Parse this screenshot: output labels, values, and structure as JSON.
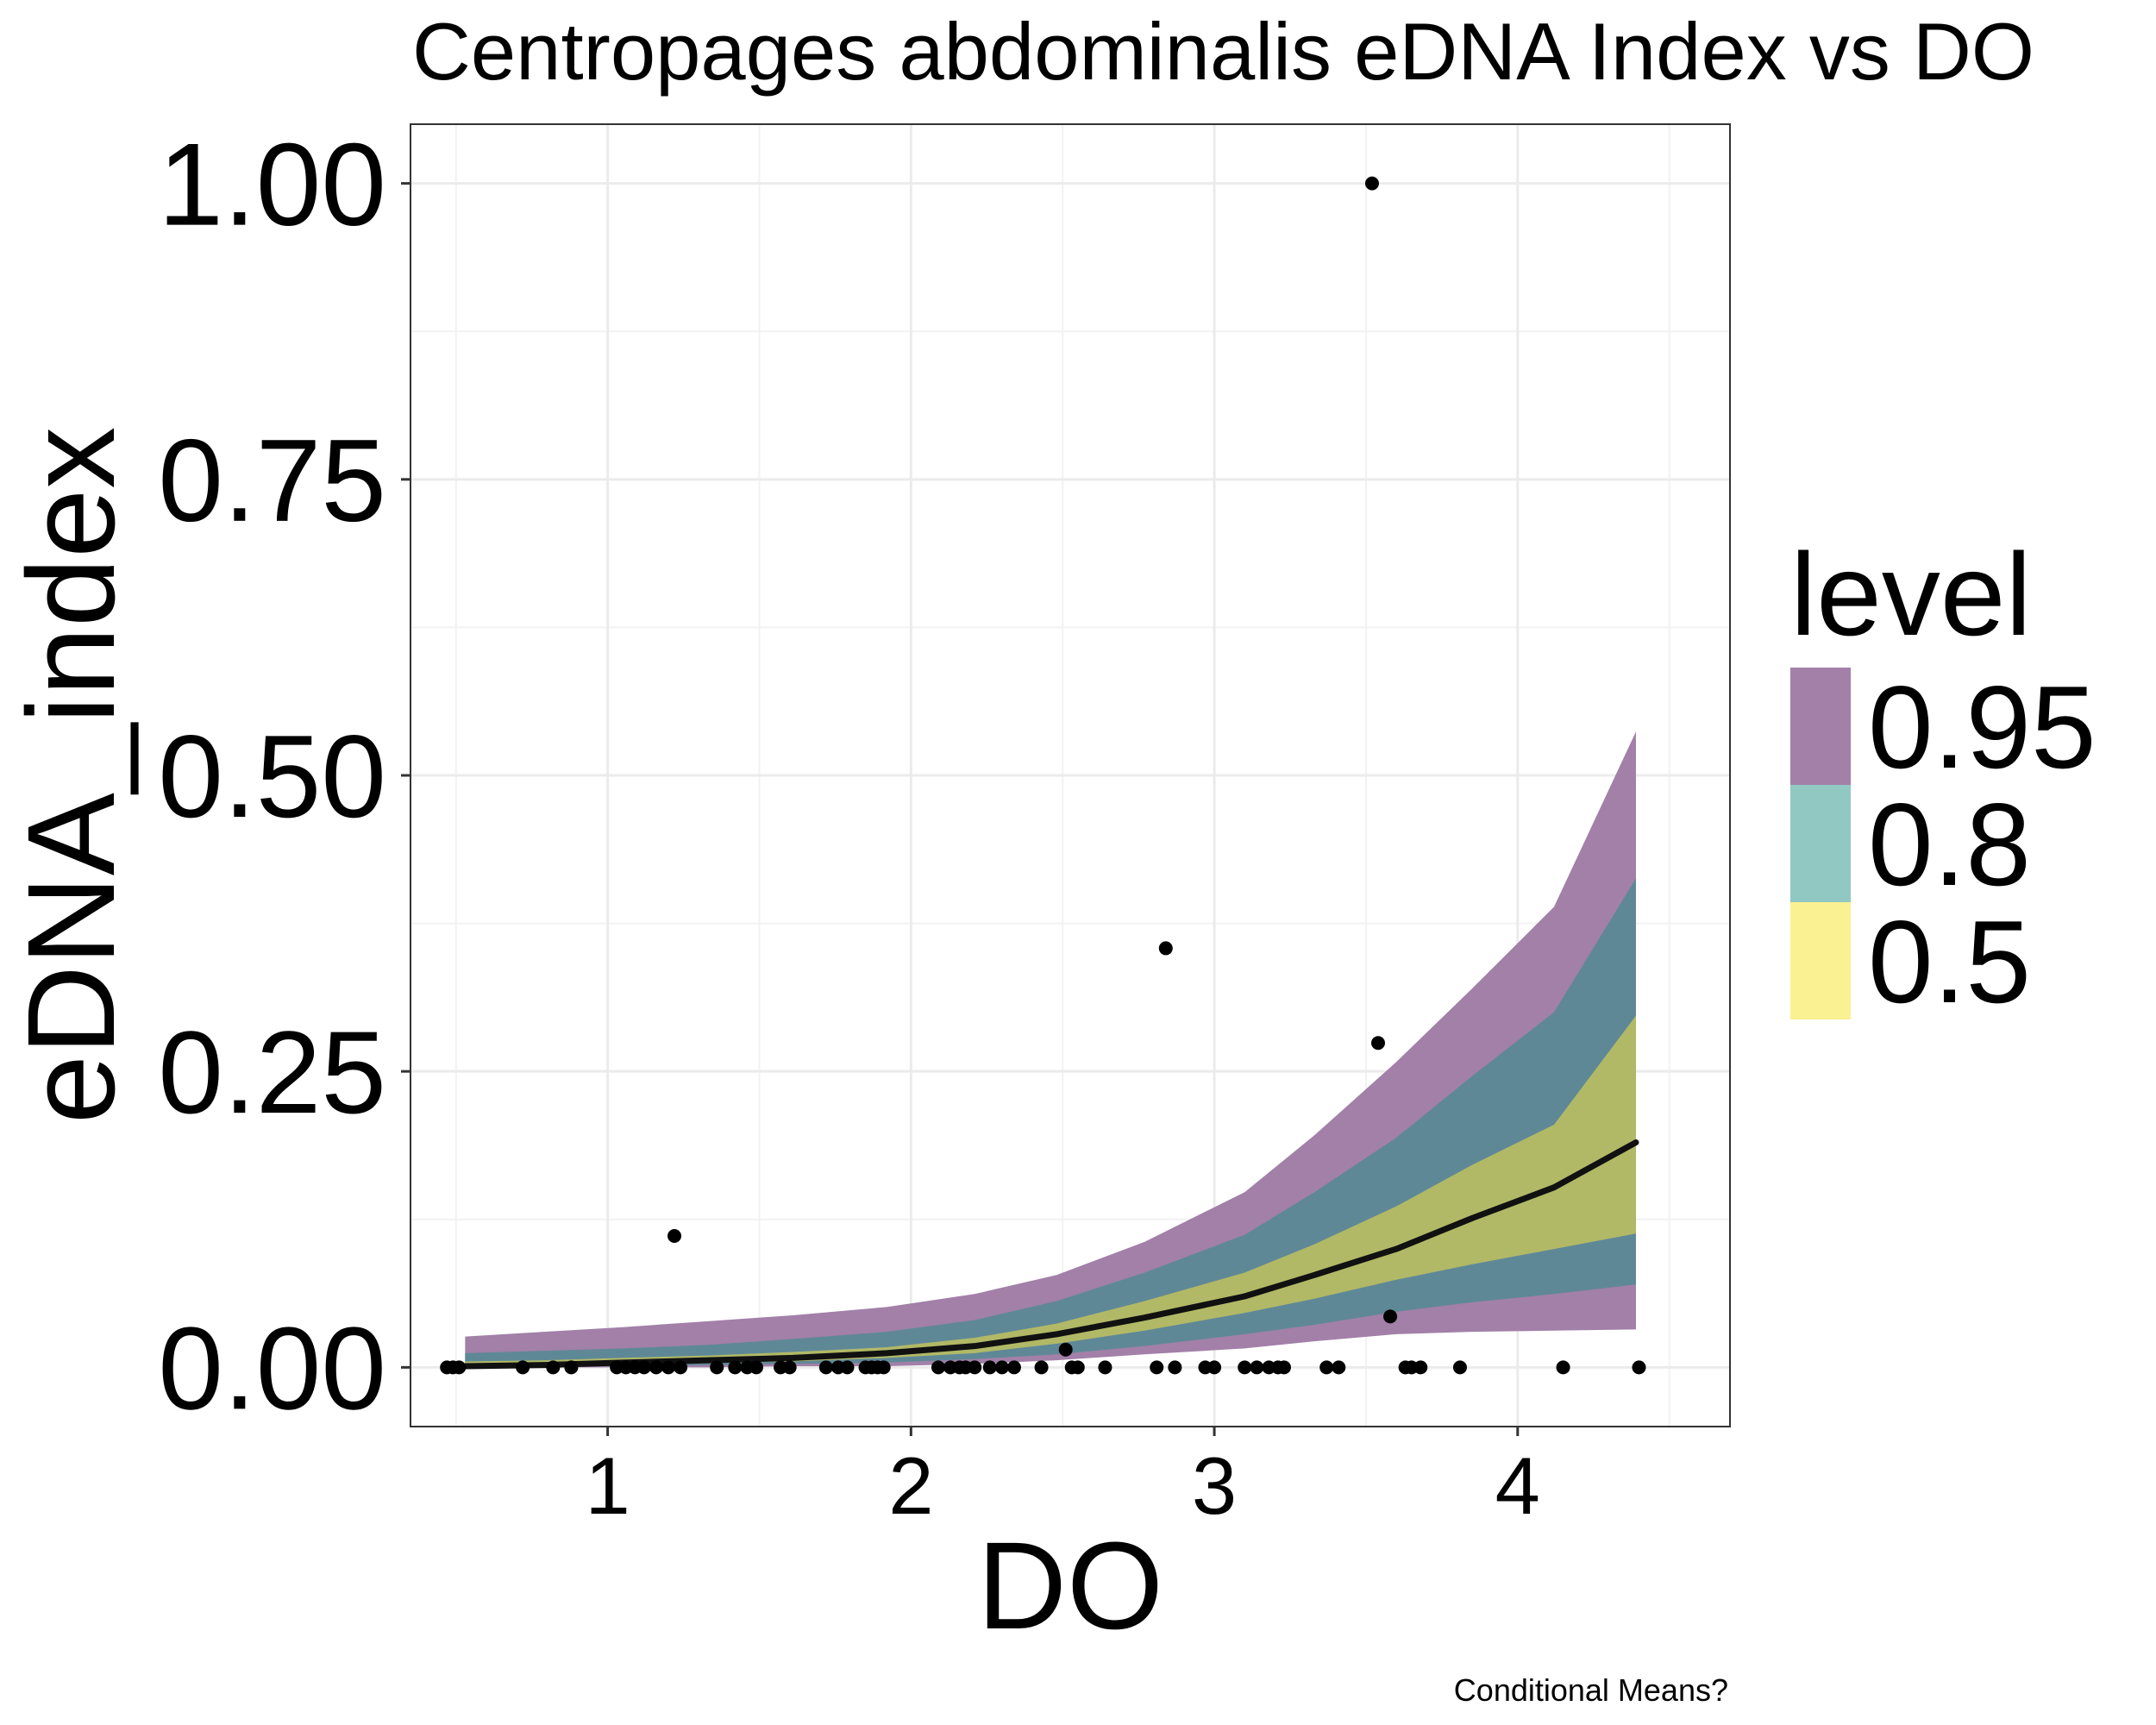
{
  "chart_data": {
    "type": "line",
    "title": "Centropages abdominalis eDNA Index vs DO",
    "xlabel": "DO",
    "ylabel": "eDNA_index",
    "caption": "Conditional Means?",
    "xlim": [
      0.35,
      4.7
    ],
    "ylim": [
      -0.05,
      1.05
    ],
    "x_ticks": [
      1,
      2,
      3,
      4
    ],
    "x_tick_labels": [
      "1",
      "2",
      "3",
      "4"
    ],
    "y_ticks": [
      0.0,
      0.25,
      0.5,
      0.75,
      1.0
    ],
    "y_tick_labels": [
      "0.00",
      "0.25",
      "0.50",
      "0.75",
      "1.00"
    ],
    "grid": true,
    "legend": {
      "title": "level",
      "position": "right",
      "entries": [
        {
          "label": "0.95",
          "color": "#a280a8"
        },
        {
          "label": "0.8",
          "color": "#91c8c2"
        },
        {
          "label": "0.5",
          "color": "#faf192"
        }
      ]
    },
    "ribbon_colors": {
      "0.95": "#a280a8",
      "0.8": "#5f8897",
      "0.5": "#b1b966"
    },
    "x": [
      0.53,
      0.79,
      1.05,
      1.33,
      1.61,
      1.92,
      2.21,
      2.48,
      2.77,
      3.1,
      3.33,
      3.6,
      3.85,
      4.12,
      4.39
    ],
    "ribbons": [
      {
        "level": "0.95",
        "lower": [
          0.0,
          0.0,
          0.0,
          0.0,
          0.001,
          0.001,
          0.003,
          0.006,
          0.011,
          0.016,
          0.022,
          0.028,
          0.03,
          0.031,
          0.032
        ],
        "upper": [
          0.026,
          0.03,
          0.034,
          0.039,
          0.044,
          0.051,
          0.062,
          0.078,
          0.106,
          0.148,
          0.196,
          0.258,
          0.32,
          0.389,
          0.537
        ]
      },
      {
        "level": "0.8",
        "lower": [
          0.0,
          0.0,
          0.001,
          0.002,
          0.003,
          0.004,
          0.007,
          0.011,
          0.018,
          0.028,
          0.036,
          0.047,
          0.055,
          0.062,
          0.07
        ],
        "upper": [
          0.012,
          0.014,
          0.016,
          0.019,
          0.024,
          0.03,
          0.04,
          0.056,
          0.08,
          0.112,
          0.148,
          0.194,
          0.246,
          0.3,
          0.413
        ]
      },
      {
        "level": "0.5",
        "lower": [
          0.001,
          0.002,
          0.003,
          0.004,
          0.005,
          0.008,
          0.012,
          0.02,
          0.031,
          0.046,
          0.058,
          0.074,
          0.087,
          0.1,
          0.113
        ],
        "upper": [
          0.005,
          0.006,
          0.008,
          0.01,
          0.013,
          0.017,
          0.025,
          0.037,
          0.056,
          0.08,
          0.104,
          0.136,
          0.171,
          0.205,
          0.297
        ]
      }
    ],
    "series": [
      {
        "values": [
          0.001,
          0.002,
          0.004,
          0.006,
          0.008,
          0.012,
          0.018,
          0.028,
          0.042,
          0.06,
          0.078,
          0.1,
          0.126,
          0.152,
          0.19
        ]
      }
    ],
    "points": [
      {
        "x": 0.47,
        "y": 0.0
      },
      {
        "x": 0.49,
        "y": 0.0
      },
      {
        "x": 0.51,
        "y": 0.0
      },
      {
        "x": 0.72,
        "y": 0.0
      },
      {
        "x": 0.82,
        "y": 0.0
      },
      {
        "x": 0.88,
        "y": 0.0
      },
      {
        "x": 1.03,
        "y": 0.0
      },
      {
        "x": 1.06,
        "y": 0.0
      },
      {
        "x": 1.09,
        "y": 0.0
      },
      {
        "x": 1.12,
        "y": 0.0
      },
      {
        "x": 1.16,
        "y": 0.0
      },
      {
        "x": 1.2,
        "y": 0.0
      },
      {
        "x": 1.24,
        "y": 0.0
      },
      {
        "x": 1.22,
        "y": 0.111
      },
      {
        "x": 1.36,
        "y": 0.0
      },
      {
        "x": 1.42,
        "y": 0.0
      },
      {
        "x": 1.46,
        "y": 0.0
      },
      {
        "x": 1.49,
        "y": 0.0
      },
      {
        "x": 1.57,
        "y": 0.0
      },
      {
        "x": 1.6,
        "y": 0.0
      },
      {
        "x": 1.72,
        "y": 0.0
      },
      {
        "x": 1.76,
        "y": 0.0
      },
      {
        "x": 1.79,
        "y": 0.0
      },
      {
        "x": 1.85,
        "y": 0.0
      },
      {
        "x": 1.87,
        "y": 0.0
      },
      {
        "x": 1.89,
        "y": 0.0
      },
      {
        "x": 1.91,
        "y": 0.0
      },
      {
        "x": 2.09,
        "y": 0.0
      },
      {
        "x": 2.13,
        "y": 0.0
      },
      {
        "x": 2.16,
        "y": 0.0
      },
      {
        "x": 2.18,
        "y": 0.0
      },
      {
        "x": 2.21,
        "y": 0.0
      },
      {
        "x": 2.26,
        "y": 0.0
      },
      {
        "x": 2.3,
        "y": 0.0
      },
      {
        "x": 2.34,
        "y": 0.0
      },
      {
        "x": 2.43,
        "y": 0.0
      },
      {
        "x": 2.51,
        "y": 0.015
      },
      {
        "x": 2.53,
        "y": 0.0
      },
      {
        "x": 2.55,
        "y": 0.0
      },
      {
        "x": 2.64,
        "y": 0.0
      },
      {
        "x": 2.81,
        "y": 0.0
      },
      {
        "x": 2.84,
        "y": 0.354
      },
      {
        "x": 2.87,
        "y": 0.0
      },
      {
        "x": 2.97,
        "y": 0.0
      },
      {
        "x": 3.0,
        "y": 0.0
      },
      {
        "x": 3.1,
        "y": 0.0
      },
      {
        "x": 3.14,
        "y": 0.0
      },
      {
        "x": 3.18,
        "y": 0.0
      },
      {
        "x": 3.21,
        "y": 0.0
      },
      {
        "x": 3.23,
        "y": 0.0
      },
      {
        "x": 3.37,
        "y": 0.0
      },
      {
        "x": 3.41,
        "y": 0.0
      },
      {
        "x": 3.52,
        "y": 1.0
      },
      {
        "x": 3.54,
        "y": 0.274
      },
      {
        "x": 3.58,
        "y": 0.043
      },
      {
        "x": 3.63,
        "y": 0.0
      },
      {
        "x": 3.65,
        "y": 0.0
      },
      {
        "x": 3.68,
        "y": 0.0
      },
      {
        "x": 3.81,
        "y": 0.0
      },
      {
        "x": 4.15,
        "y": 0.0
      },
      {
        "x": 4.4,
        "y": 0.0
      }
    ]
  }
}
